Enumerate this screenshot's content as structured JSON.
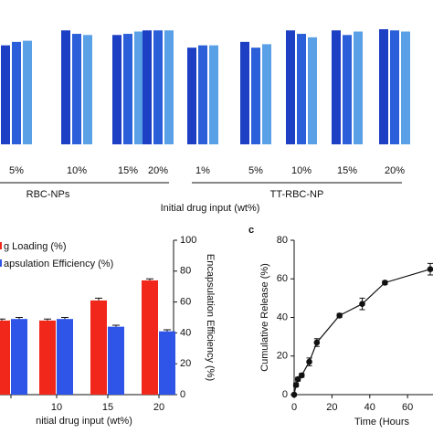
{
  "chart_data": [
    {
      "type": "bar",
      "categories": [
        "5%",
        "10%",
        "15%",
        "20%",
        "1%",
        "5%",
        "10%",
        "15%",
        "20%"
      ],
      "groups": [
        {
          "label": "RBC-NPs",
          "from": 0,
          "to": 3
        },
        {
          "label": "TT-RBC-NP",
          "from": 4,
          "to": 8
        }
      ],
      "x_label": "Initial drug input (wt%)",
      "ylim": [
        0,
        100
      ],
      "series": [
        {
          "color": "#1d3fc4",
          "values": [
            86,
            99,
            95,
            99,
            84,
            89,
            99,
            99,
            100
          ]
        },
        {
          "color": "#2b5fd9",
          "values": [
            89,
            96,
            96,
            99,
            86,
            84,
            96,
            95,
            99
          ]
        },
        {
          "color": "#5aa0e6",
          "values": [
            90,
            95,
            98,
            99,
            86,
            87,
            93,
            98,
            98
          ]
        }
      ]
    },
    {
      "type": "bar",
      "categories": [
        null,
        "10",
        "15",
        "20"
      ],
      "x_label": "nitial drug input (wt%)",
      "y2_label": "Encapsulation Efficiency (%)",
      "y2lim": [
        0,
        100
      ],
      "y2ticks": [
        0,
        20,
        40,
        60,
        80,
        100
      ],
      "series": [
        {
          "name": "g Loading (%)",
          "color": "#f2271c",
          "axis": "y2",
          "values": [
            48,
            48,
            61,
            74
          ],
          "errors": [
            1,
            1,
            1.5,
            1
          ]
        },
        {
          "name": "apsulation Efficiency (%)",
          "color": "#2f54e8",
          "axis": "y2",
          "values": [
            49,
            49,
            44,
            41
          ],
          "errors": [
            1,
            1,
            1,
            1
          ]
        }
      ]
    },
    {
      "type": "line",
      "panel_label": "c",
      "x_label": "Time (Hours",
      "y_label": "Cumulative Release (%)",
      "xlim": [
        0,
        72
      ],
      "xticks": [
        0,
        20,
        40,
        60
      ],
      "ylim": [
        0,
        80
      ],
      "yticks": [
        0,
        20,
        40,
        60,
        80
      ],
      "x": [
        0,
        1,
        2,
        4,
        8,
        12,
        24,
        36,
        48,
        72
      ],
      "series": [
        {
          "color": "#111111",
          "values": [
            0,
            5,
            8,
            10,
            17,
            27,
            41,
            47,
            58,
            65
          ],
          "errors": [
            0,
            1,
            1,
            1,
            2,
            2,
            1,
            3,
            1,
            3
          ]
        }
      ]
    }
  ]
}
